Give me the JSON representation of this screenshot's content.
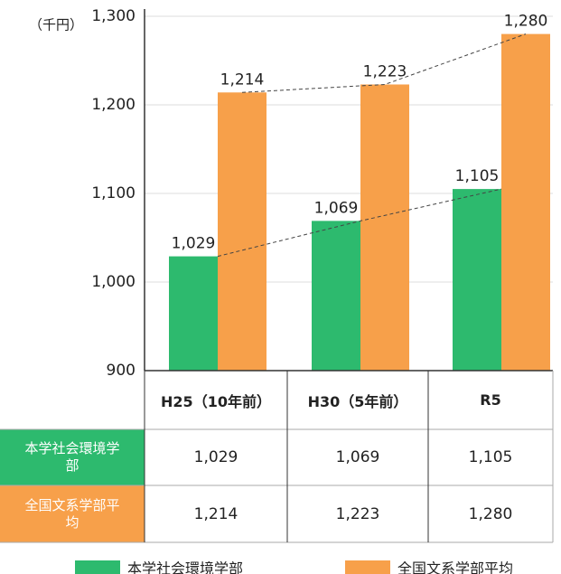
{
  "chart_data": {
    "type": "bar",
    "y_unit": "（千円）",
    "categories": [
      "H25（10年前）",
      "H30（5年前）",
      "R5"
    ],
    "series": [
      {
        "name": "本学社会環境学部",
        "color": "#2dba6e",
        "values": [
          1029,
          1069,
          1105
        ],
        "value_labels": [
          "1,029",
          "1,069",
          "1,105"
        ]
      },
      {
        "name": "全国文系学部平均",
        "color": "#f7a04a",
        "values": [
          1214,
          1223,
          1280
        ],
        "value_labels": [
          "1,214",
          "1,223",
          "1,280"
        ]
      }
    ],
    "ylim": [
      900,
      1300
    ],
    "yticks": [
      900,
      {
        "value": 1000,
        "label": "1,000"
      },
      {
        "value": 1100,
        "label": "1,100"
      },
      {
        "value": 1200,
        "label": "1,200"
      },
      {
        "value": 1300,
        "label": "1,300"
      }
    ],
    "grid": true
  }
}
